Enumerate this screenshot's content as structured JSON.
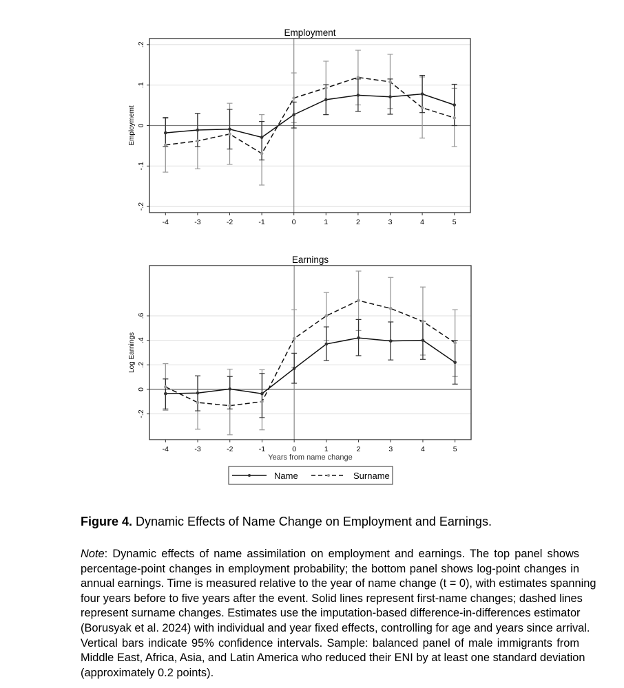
{
  "chart_data": [
    {
      "type": "line",
      "title": "Employment",
      "xlabel": "",
      "ylabel": "Employmemt",
      "x": [
        -4,
        -3,
        -2,
        -1,
        0,
        1,
        2,
        3,
        4,
        5
      ],
      "xlim": [
        -4.5,
        5.5
      ],
      "ylim": [
        -0.215,
        0.215
      ],
      "yticks": [
        -0.2,
        -0.1,
        0,
        0.1,
        0.2
      ],
      "ytick_labels": [
        "-.2",
        "-.1",
        "0",
        ".1",
        ".2"
      ],
      "xtick_labels": [
        "-4",
        "-3",
        "-2",
        "-1",
        "0",
        "1",
        "2",
        "3",
        "4",
        "5"
      ],
      "grid": true,
      "reference_lines": {
        "x": 0,
        "y": 0
      },
      "series": [
        {
          "name": "Name",
          "style": "solid",
          "color": "#333333",
          "values": [
            -0.018,
            -0.011,
            -0.009,
            -0.029,
            0.027,
            0.064,
            0.075,
            0.071,
            0.078,
            0.051
          ],
          "ci_low": [
            -0.052,
            -0.052,
            -0.058,
            -0.085,
            -0.006,
            0.027,
            0.035,
            0.028,
            0.032,
            0.0
          ],
          "ci_high": [
            0.02,
            0.03,
            0.04,
            0.01,
            0.058,
            0.101,
            0.115,
            0.115,
            0.124,
            0.102
          ]
        },
        {
          "name": "Surname",
          "style": "dashed",
          "color": "#999999",
          "values": [
            -0.048,
            -0.038,
            -0.021,
            -0.069,
            0.068,
            0.093,
            0.119,
            0.108,
            0.044,
            0.019
          ],
          "ci_low": [
            -0.115,
            -0.107,
            -0.096,
            -0.147,
            0.007,
            0.027,
            0.051,
            0.042,
            -0.031,
            -0.052
          ],
          "ci_high": [
            0.018,
            0.03,
            0.055,
            0.027,
            0.13,
            0.159,
            0.186,
            0.176,
            0.12,
            0.092
          ]
        }
      ]
    },
    {
      "type": "line",
      "title": "Earnings",
      "xlabel": "Years from name change",
      "ylabel": "Log Earnings",
      "x": [
        -4,
        -3,
        -2,
        -1,
        0,
        1,
        2,
        3,
        4,
        5
      ],
      "xlim": [
        -4.5,
        5.5
      ],
      "ylim": [
        -0.41,
        1.01
      ],
      "yticks": [
        -0.2,
        0,
        0.2,
        0.4,
        0.6
      ],
      "ytick_labels": [
        "-.2",
        "0",
        ".2",
        ".4",
        ".6"
      ],
      "xtick_labels": [
        "-4",
        "-3",
        "-2",
        "-1",
        "0",
        "1",
        "2",
        "3",
        "4",
        "5"
      ],
      "grid": true,
      "reference_lines": {
        "x": 0,
        "y": 0
      },
      "series": [
        {
          "name": "Name",
          "style": "solid",
          "color": "#333333",
          "values": [
            -0.035,
            -0.03,
            0.003,
            -0.035,
            0.17,
            0.37,
            0.42,
            0.395,
            0.4,
            0.22
          ],
          "ci_low": [
            -0.16,
            -0.175,
            -0.16,
            -0.23,
            0.05,
            0.235,
            0.275,
            0.24,
            0.245,
            0.043
          ],
          "ci_high": [
            0.085,
            0.11,
            0.105,
            0.13,
            0.295,
            0.51,
            0.57,
            0.55,
            0.555,
            0.4
          ]
        },
        {
          "name": "Surname",
          "style": "dashed",
          "color": "#999999",
          "values": [
            0.02,
            -0.107,
            -0.133,
            -0.1,
            0.415,
            0.6,
            0.725,
            0.66,
            0.555,
            0.38
          ],
          "ci_low": [
            -0.17,
            -0.325,
            -0.37,
            -0.33,
            0.18,
            0.4,
            0.48,
            0.4,
            0.28,
            0.105
          ],
          "ci_high": [
            0.21,
            0.11,
            0.165,
            0.16,
            0.65,
            0.79,
            0.965,
            0.913,
            0.835,
            0.65
          ]
        }
      ]
    }
  ],
  "legend": {
    "placement": "bottom",
    "items": [
      "Name",
      "Surname"
    ]
  },
  "caption": {
    "label": "Figure 4.",
    "text": " Dynamic Effects of Name Change on Employment and Earnings."
  },
  "note": {
    "label": "Note",
    "lines": [
      ": Dynamic effects of name assimilation on employment and earnings. The top panel shows",
      "percentage-point changes in employment probability; the bottom panel shows log-point changes in",
      "annual earnings. Time is measured relative to the year of name change (t = 0), with estimates spanning",
      "four years before to five years after the event. Solid lines represent first-name changes; dashed lines",
      "represent surname changes. Estimates use the imputation-based difference-in-differences estimator",
      "(Borusyak et al. 2024) with individual and year fixed effects, controlling for age and years since arrival.",
      "Vertical bars indicate 95% confidence intervals. Sample: balanced panel of male immigrants from",
      "Middle East, Africa, Asia, and Latin America who reduced their ENI by at least one standard deviation",
      "(approximately 0.2 points)."
    ]
  }
}
